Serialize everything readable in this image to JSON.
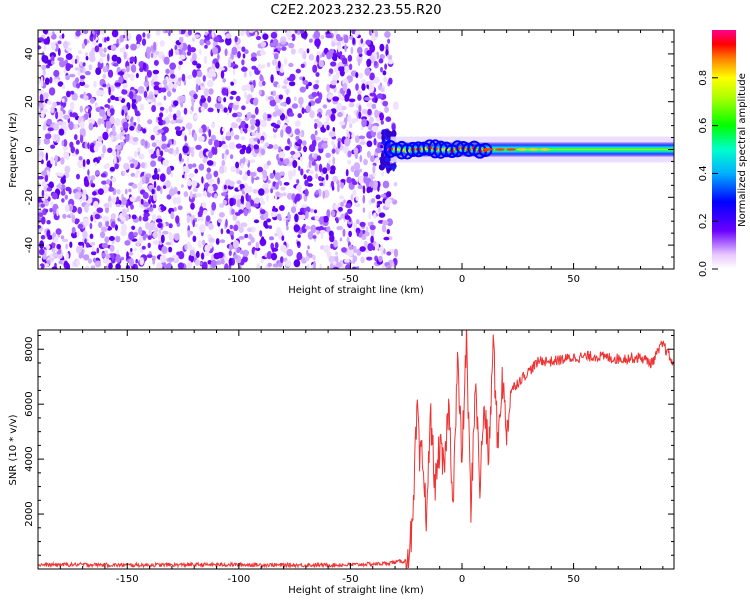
{
  "title": "C2E2.2023.232.23.55.R20",
  "chart_data": [
    {
      "type": "heatmap",
      "title": "C2E2.2023.232.23.55.R20",
      "xlabel": "Height of straight line (km)",
      "ylabel": "Frequency (Hz)",
      "xlim": [
        -190,
        95
      ],
      "ylim": [
        -50,
        50
      ],
      "x_ticks": [
        -150,
        -100,
        -50,
        0,
        50
      ],
      "y_ticks": [
        -40,
        -20,
        0,
        20,
        40
      ],
      "grid": false,
      "regions": {
        "noise": {
          "x": [
            -190,
            -32
          ],
          "y": [
            -50,
            50
          ]
        },
        "signal": {
          "x": [
            -32,
            95
          ],
          "center_frequency": 0,
          "half_width": 3
        }
      },
      "colorbar": {
        "label": "Normalized spectral amplitude",
        "range": [
          0,
          1
        ],
        "ticks": [
          "0.0",
          "0.2",
          "0.4",
          "0.6",
          "0.8"
        ],
        "colormap": "rainbow (white-violet-blue-cyan-green-yellow-red-magenta)"
      }
    },
    {
      "type": "line",
      "xlabel": "Height of straight line (km)",
      "ylabel": "SNR (10 * v/v)",
      "xlim": [
        -190,
        95
      ],
      "ylim": [
        0,
        8700
      ],
      "x_ticks": [
        -150,
        -100,
        -50,
        0,
        50
      ],
      "y_ticks": [
        2000,
        4000,
        6000,
        8000
      ],
      "grid": false,
      "series": [
        {
          "color": "#ee3333",
          "x": [
            -190,
            -170,
            -150,
            -130,
            -110,
            -90,
            -70,
            -50,
            -35,
            -25,
            -22,
            -21,
            -20,
            -19,
            -18,
            -16,
            -14,
            -12,
            -10,
            -8,
            -6,
            -4,
            -2,
            0,
            2,
            4,
            6,
            8,
            10,
            12,
            14,
            16,
            18,
            20,
            22,
            25,
            30,
            35,
            40,
            50,
            60,
            70,
            80,
            85,
            90,
            95
          ],
          "values": [
            150,
            160,
            140,
            150,
            160,
            150,
            140,
            150,
            200,
            300,
            1500,
            4000,
            6000,
            3800,
            4200,
            2000,
            5500,
            3000,
            4500,
            3500,
            6000,
            2500,
            7500,
            4000,
            8400,
            2000,
            7000,
            3000,
            6000,
            4000,
            8300,
            4500,
            7000,
            5000,
            6500,
            6800,
            7200,
            7600,
            7550,
            7700,
            7750,
            7650,
            7700,
            7500,
            8200,
            7400
          ]
        }
      ]
    }
  ]
}
